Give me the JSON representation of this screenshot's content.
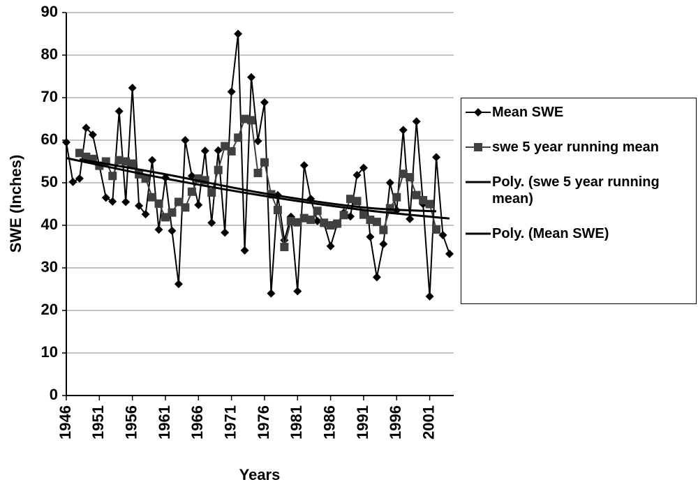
{
  "chart_data": {
    "type": "line",
    "y_label": "SWE (Inches)",
    "x_label": "Years",
    "xlim": [
      1946,
      2004
    ],
    "xticks": [
      1946,
      1951,
      1956,
      1961,
      1966,
      1971,
      1976,
      1981,
      1986,
      1991,
      1996,
      2001
    ],
    "ylim": [
      0,
      90
    ],
    "yticks": [
      0,
      10,
      20,
      30,
      40,
      50,
      60,
      70,
      80,
      90
    ],
    "grid": true,
    "series": [
      {
        "name": "Mean SWE",
        "color": "#000000",
        "marker": "diamond",
        "x": [
          1946,
          1947,
          1948,
          1949,
          1950,
          1951,
          1952,
          1953,
          1954,
          1955,
          1956,
          1957,
          1958,
          1959,
          1960,
          1961,
          1962,
          1963,
          1964,
          1965,
          1966,
          1967,
          1968,
          1969,
          1970,
          1971,
          1972,
          1973,
          1974,
          1975,
          1976,
          1977,
          1978,
          1979,
          1980,
          1981,
          1982,
          1983,
          1984,
          1985,
          1986,
          1987,
          1988,
          1989,
          1990,
          1991,
          1992,
          1993,
          1994,
          1995,
          1996,
          1997,
          1998,
          1999,
          2000,
          2001,
          2002,
          2003,
          2004
        ],
        "values": [
          59.5,
          50.2,
          51,
          62.9,
          61.3,
          54,
          46.5,
          45.6,
          66.8,
          45.5,
          72.3,
          44.6,
          42.6,
          55.3,
          39,
          51.2,
          38.7,
          26.2,
          60,
          51.6,
          44.8,
          57.5,
          40.6,
          57.6,
          38.3,
          71.4,
          85,
          34.1,
          74.8,
          59.8,
          68.9,
          24,
          47.1,
          36.5,
          42,
          24.5,
          54.1,
          46.2,
          41,
          40.5,
          35.1,
          40.3,
          43,
          42.1,
          51.8,
          53.5,
          37.3,
          27.8,
          35.6,
          50,
          43.5,
          62.4,
          41.5,
          64.4,
          45,
          23.3,
          56,
          37.7,
          33.3
        ]
      },
      {
        "name": "swe 5 year running mean",
        "color": "#404040",
        "marker": "square",
        "x": [
          1946,
          1947,
          1948,
          1949,
          1950,
          1951,
          1952,
          1953,
          1954,
          1955,
          1956,
          1957,
          1958,
          1959,
          1960,
          1961,
          1962,
          1963,
          1964,
          1965,
          1966,
          1967,
          1968,
          1969,
          1970,
          1971,
          1972,
          1973,
          1974,
          1975,
          1976,
          1977,
          1978,
          1979,
          1980,
          1981,
          1982,
          1983,
          1984,
          1985,
          1986,
          1987,
          1988,
          1989,
          1990,
          1991,
          1992,
          1993,
          1994,
          1995,
          1996,
          1997,
          1998,
          1999,
          2000,
          2001,
          2002,
          2003,
          2004
        ],
        "values": [
          null,
          null,
          57,
          56.1,
          55.6,
          54,
          55,
          51.6,
          55.3,
          55,
          54.5,
          52,
          51,
          46.6,
          45.1,
          41.9,
          43,
          45.5,
          44.2,
          47.9,
          51,
          50.6,
          47.7,
          53,
          58.6,
          57.4,
          60.6,
          65,
          64.7,
          52.3,
          54.8,
          47.3,
          43.6,
          34.9,
          41,
          40.7,
          41.7,
          41.3,
          43.4,
          40.6,
          40,
          40.4,
          42.4,
          46.2,
          45.7,
          42.5,
          41.3,
          40.8,
          38.9,
          44,
          46.6,
          52.1,
          51.3,
          47.1,
          45.9,
          45,
          39,
          null,
          null
        ]
      },
      {
        "name": "Poly. (swe 5 year running mean)",
        "color": "#000000",
        "marker": "none",
        "x": [
          1948,
          1961,
          1976,
          1991,
          2002
        ],
        "values": [
          55.5,
          52,
          47.5,
          44.2,
          43.3
        ]
      },
      {
        "name": "Poly. (Mean SWE)",
        "color": "#000000",
        "marker": "none",
        "x": [
          1946,
          1961,
          1976,
          1991,
          2004
        ],
        "values": [
          55.8,
          51,
          46.9,
          43.6,
          41.6
        ]
      }
    ]
  }
}
